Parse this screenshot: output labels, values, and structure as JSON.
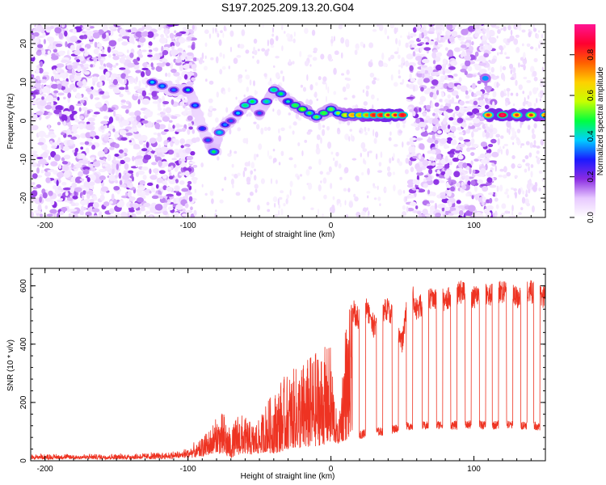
{
  "title": "S197.2025.209.13.20.G04",
  "chart_data": [
    {
      "type": "heatmap",
      "xlabel": "Height of straight line (km)",
      "ylabel": "Frequency (Hz)",
      "xlim": [
        -210,
        150
      ],
      "ylim": [
        -25,
        25
      ],
      "x_ticks": [
        -200,
        -100,
        0,
        100
      ],
      "y_ticks": [
        -20,
        -10,
        0,
        10,
        20
      ],
      "colorbar": {
        "label": "Normalized spectral amplitude",
        "range": [
          0.0,
          0.95
        ],
        "ticks": [
          "0.0",
          "0.2",
          "0.4",
          "0.6",
          "0.8"
        ],
        "colormap": [
          "#ffffff",
          "#e7c8ff",
          "#8a2be2",
          "#1a1aff",
          "#00cfff",
          "#00ff40",
          "#c8ff00",
          "#ffd000",
          "#ff6000",
          "#ff0030",
          "#ff1493"
        ]
      },
      "ridge": {
        "x": [
          -125,
          -118,
          -110,
          -100,
          -95,
          -90,
          -86,
          -82,
          -78,
          -74,
          -70,
          -65,
          -60,
          -55,
          -50,
          -45,
          -40,
          -35,
          -30,
          -25,
          -20,
          -15,
          -10,
          -5,
          0,
          5,
          10,
          15,
          20,
          25,
          30,
          35,
          40,
          45,
          50
        ],
        "frequency_hz": [
          10,
          9,
          8,
          8,
          4,
          -2,
          -5,
          -8,
          -3,
          -1,
          0,
          2,
          4,
          5,
          2,
          5,
          8,
          7,
          5,
          4,
          3,
          2,
          1,
          2,
          3,
          2,
          1.5,
          1.5,
          1.5,
          1.5,
          1.5,
          1.5,
          1.5,
          1.5,
          1.5
        ],
        "peak_amplitude": [
          0.35,
          0.3,
          0.3,
          0.4,
          0.3,
          0.25,
          0.3,
          0.45,
          0.35,
          0.3,
          0.3,
          0.35,
          0.4,
          0.45,
          0.3,
          0.4,
          0.4,
          0.45,
          0.4,
          0.45,
          0.5,
          0.5,
          0.5,
          0.45,
          0.5,
          0.55,
          0.6,
          0.65,
          0.7,
          0.75,
          0.8,
          0.8,
          0.85,
          0.85,
          0.8
        ]
      },
      "ridge2": {
        "x": [
          110,
          120,
          130,
          140,
          150
        ],
        "frequency_hz": [
          1.5,
          1.5,
          1.5,
          1.5,
          1.5
        ],
        "peak_amplitude": [
          0.8,
          0.85,
          0.8,
          0.85,
          0.7
        ]
      },
      "isolated_blob": {
        "x": 108,
        "frequency_hz": 11,
        "amplitude": 0.35
      },
      "noise_regions": [
        [
          -210,
          -95
        ],
        [
          55,
          115
        ]
      ]
    },
    {
      "type": "line",
      "xlabel": "Height of straight line (km)",
      "ylabel": "SNR (10 * v/v)",
      "xlim": [
        -210,
        150
      ],
      "ylim": [
        0,
        660
      ],
      "x_ticks": [
        -200,
        -100,
        0,
        100
      ],
      "y_ticks": [
        0,
        200,
        400,
        600
      ],
      "color": "#ee3322",
      "series": [
        {
          "x": [
            -210,
            -150,
            -120,
            -105,
            -95,
            -85,
            -80,
            -75,
            -70,
            -65,
            -60,
            -55,
            -50,
            -45,
            -40,
            -35,
            -30,
            -25,
            -20,
            -15,
            -10,
            -5,
            0,
            5,
            10,
            15,
            20,
            25,
            30,
            35,
            40,
            45,
            50,
            55,
            60,
            70,
            80,
            90,
            100,
            110,
            120,
            130,
            140,
            150
          ],
          "y": [
            20,
            20,
            25,
            30,
            50,
            110,
            150,
            170,
            100,
            170,
            150,
            130,
            140,
            210,
            230,
            280,
            300,
            320,
            340,
            360,
            380,
            390,
            400,
            100,
            480,
            560,
            520,
            560,
            500,
            550,
            560,
            520,
            440,
            640,
            560,
            600,
            590,
            620,
            600,
            610,
            620,
            600,
            620,
            600
          ]
        },
        {
          "x": [
            -210,
            -150,
            -120,
            -105,
            -95,
            -85,
            -80,
            -75,
            -70,
            -65,
            -60,
            -55,
            -50,
            -45,
            -40,
            -35,
            -30,
            -25,
            -20,
            -15,
            -10,
            -5,
            0,
            5,
            10,
            15,
            20,
            25,
            30,
            35,
            40,
            45,
            50,
            55,
            60,
            70,
            80,
            90,
            100,
            110,
            120,
            130,
            140,
            150
          ],
          "y": [
            5,
            5,
            5,
            8,
            10,
            20,
            30,
            15,
            10,
            20,
            25,
            20,
            25,
            30,
            25,
            30,
            40,
            45,
            40,
            45,
            50,
            55,
            60,
            60,
            70,
            80,
            90,
            95,
            100,
            100,
            105,
            110,
            115,
            120,
            120,
            120,
            125,
            120,
            125,
            120,
            125,
            120,
            125,
            110
          ]
        }
      ],
      "spikes_low_x": [
        22,
        34,
        45,
        55,
        66,
        76,
        86,
        96,
        106,
        115,
        125,
        135,
        144
      ]
    }
  ]
}
